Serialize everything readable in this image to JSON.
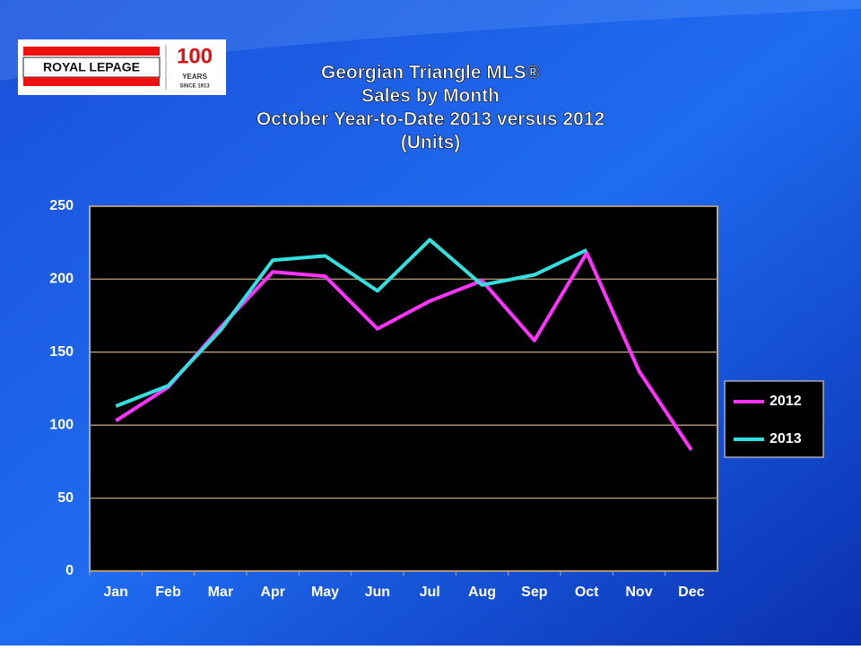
{
  "logo": {
    "brand": "ROYAL LEPAGE",
    "number": "100",
    "years": "YEARS",
    "since": "SINCE 1913"
  },
  "chart_data": {
    "type": "line",
    "title": [
      "Georgian Triangle MLS®",
      "Sales by Month",
      "October Year-to-Date 2013 versus 2012",
      "(Units)"
    ],
    "categories": [
      "Jan",
      "Feb",
      "Mar",
      "Apr",
      "May",
      "Jun",
      "Jul",
      "Aug",
      "Sep",
      "Oct",
      "Nov",
      "Dec"
    ],
    "series": [
      {
        "name": "2012",
        "color": "#ff33ff",
        "values": [
          103,
          126,
          167,
          205,
          202,
          166,
          185,
          199,
          158,
          218,
          137,
          83
        ]
      },
      {
        "name": "2013",
        "color": "#33e0e0",
        "values": [
          113,
          127,
          165,
          213,
          216,
          192,
          227,
          196,
          203,
          220,
          null,
          null
        ]
      }
    ],
    "ylim": [
      0,
      250
    ],
    "yticks": [
      0,
      50,
      100,
      150,
      200,
      250
    ],
    "grid": true,
    "legend": "right"
  }
}
